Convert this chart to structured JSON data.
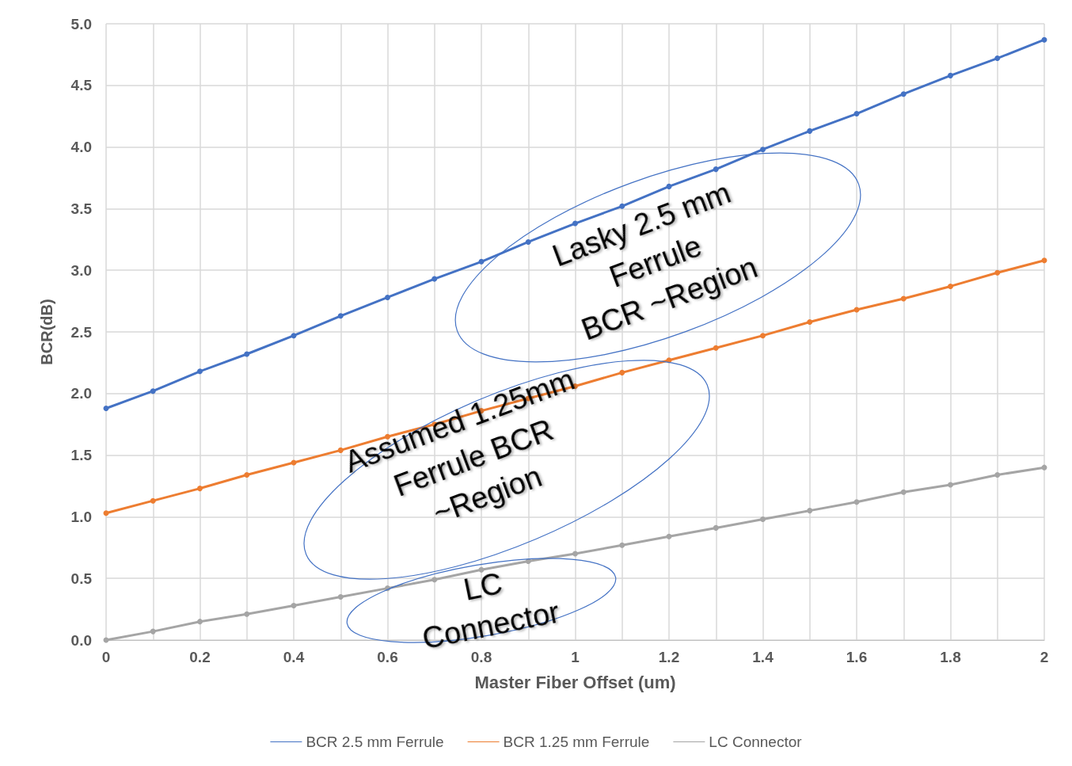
{
  "chart_data": {
    "type": "line",
    "xlabel": "Master Fiber Offset (um)",
    "ylabel": "BCR(dB)",
    "x": [
      0,
      0.1,
      0.2,
      0.3,
      0.4,
      0.5,
      0.6,
      0.7,
      0.8,
      0.9,
      1,
      1.1,
      1.2,
      1.3,
      1.4,
      1.5,
      1.6,
      1.7,
      1.8,
      1.9,
      2
    ],
    "series": [
      {
        "name": "BCR 2.5 mm Ferrule",
        "color": "#4472c4",
        "values": [
          1.88,
          2.02,
          2.18,
          2.32,
          2.47,
          2.63,
          2.78,
          2.93,
          3.07,
          3.23,
          3.38,
          3.52,
          3.68,
          3.82,
          3.98,
          4.13,
          4.27,
          4.43,
          4.58,
          4.72,
          4.87
        ]
      },
      {
        "name": "BCR 1.25 mm Ferrule",
        "color": "#ed7d31",
        "values": [
          1.03,
          1.13,
          1.23,
          1.34,
          1.44,
          1.54,
          1.65,
          1.75,
          1.86,
          1.96,
          2.06,
          2.17,
          2.27,
          2.37,
          2.47,
          2.58,
          2.68,
          2.77,
          2.87,
          2.98,
          3.08
        ]
      },
      {
        "name": "LC Connector",
        "color": "#a5a5a5",
        "values": [
          0,
          0.07,
          0.15,
          0.21,
          0.28,
          0.35,
          0.42,
          0.49,
          0.57,
          0.64,
          0.7,
          0.77,
          0.84,
          0.91,
          0.98,
          1.05,
          1.12,
          1.2,
          1.26,
          1.34,
          1.4
        ]
      }
    ],
    "xlim": [
      0,
      2
    ],
    "xticks": [
      0,
      {
        "value": 0.1,
        "label": null
      },
      0.2,
      {
        "value": 0.3,
        "label": null
      },
      0.4,
      {
        "value": 0.5,
        "label": null
      },
      0.6,
      {
        "value": 0.7,
        "label": null
      },
      0.8,
      {
        "value": 0.9,
        "label": null
      },
      1,
      {
        "value": 1.1,
        "label": null
      },
      1.2,
      {
        "value": 1.3,
        "label": null
      },
      1.4,
      {
        "value": 1.5,
        "label": null
      },
      1.6,
      {
        "value": 1.7,
        "label": null
      },
      1.8,
      {
        "value": 1.9,
        "label": null
      },
      2
    ],
    "ylim": [
      0,
      5
    ],
    "yticks": [
      {
        "value": 0,
        "label": "0.0"
      },
      {
        "value": 0.5,
        "label": "0.5"
      },
      {
        "value": 1,
        "label": "1.0"
      },
      {
        "value": 1.5,
        "label": "1.5"
      },
      {
        "value": 2,
        "label": "2.0"
      },
      {
        "value": 2.5,
        "label": "2.5"
      },
      {
        "value": 3,
        "label": "3.0"
      },
      {
        "value": 3.5,
        "label": "3.5"
      },
      {
        "value": 4,
        "label": "4.0"
      },
      {
        "value": 4.5,
        "label": "4.5"
      },
      {
        "value": 5,
        "label": "5.0"
      }
    ],
    "grid": true,
    "legend": "bottom",
    "marker": "circle",
    "line_style": "solid",
    "annotations": [
      "Lasky 2.5 mm\nFerrule\nBCR ~Region",
      "Assumed 1.25mm\nFerrule BCR\n~Region",
      "LC\nConnector"
    ]
  }
}
